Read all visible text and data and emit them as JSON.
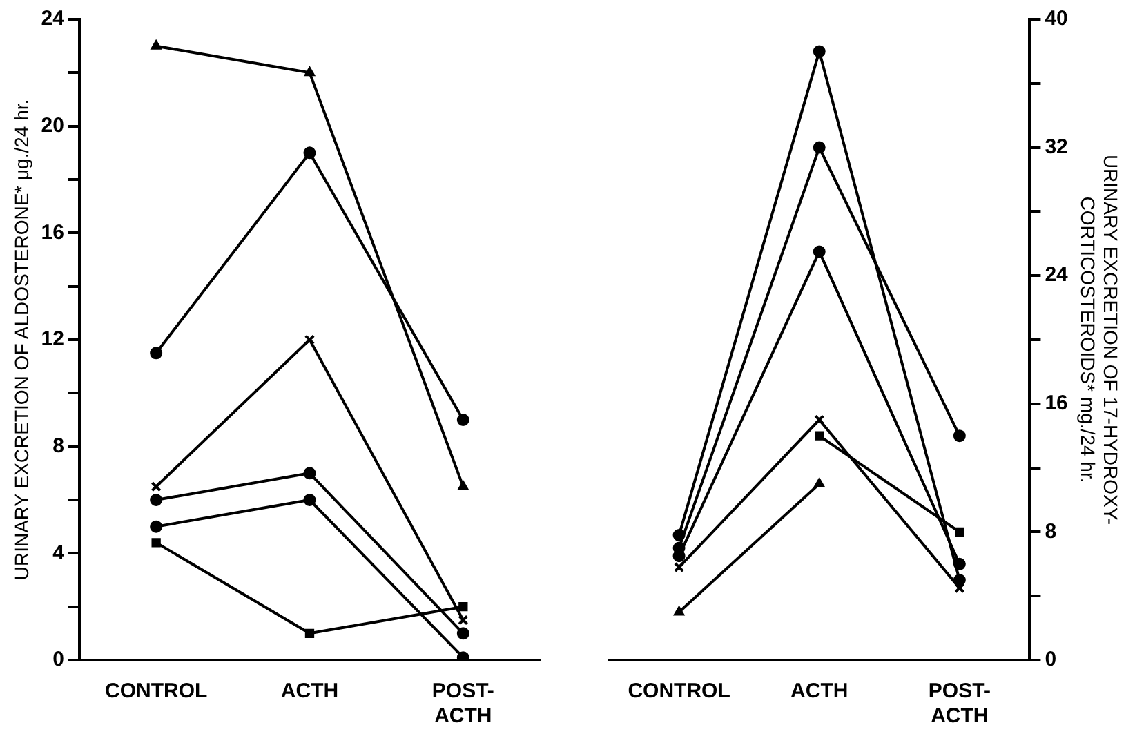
{
  "chart_data": [
    {
      "type": "line",
      "categories": [
        "CONTROL",
        "ACTH",
        "POST-ACTH"
      ],
      "ylabel": "URINARY EXCRETION OF ALDOSTERONE* μg./24 hr.",
      "ylim": [
        0,
        24
      ],
      "yticks": [
        0,
        {
          "value": 2,
          "label": null
        },
        4,
        {
          "value": 6,
          "label": null
        },
        8,
        {
          "value": 10,
          "label": null
        },
        12,
        {
          "value": 14,
          "label": null
        },
        16,
        {
          "value": 18,
          "label": null
        },
        20,
        {
          "value": 22,
          "label": null
        },
        24
      ],
      "grid": false,
      "legend": false,
      "line_style": "solid",
      "series": [
        {
          "color": "#000000",
          "marker": "triangle",
          "values": [
            23,
            22,
            6.5
          ]
        },
        {
          "color": "#000000",
          "marker": "circle",
          "values": [
            11.5,
            19,
            9
          ]
        },
        {
          "color": "#000000",
          "marker": "cross",
          "values": [
            6.5,
            12,
            1.5
          ]
        },
        {
          "color": "#000000",
          "marker": "circle",
          "values": [
            6,
            7,
            1
          ]
        },
        {
          "color": "#000000",
          "marker": "circle",
          "values": [
            5,
            6,
            0.1
          ]
        },
        {
          "color": "#000000",
          "marker": "square",
          "values": [
            4.4,
            1,
            2
          ]
        }
      ]
    },
    {
      "type": "line",
      "categories": [
        "CONTROL",
        "ACTH",
        "POST-ACTH"
      ],
      "y2label": "URINARY EXCRETION OF 17-HYDROXY-CORTICOSTEROIDS* mg./24 hr.",
      "y2lim": [
        0,
        40
      ],
      "y2ticks": [
        0,
        {
          "value": 4,
          "label": null
        },
        8,
        {
          "value": 12,
          "label": null
        },
        16,
        {
          "value": 20,
          "label": null
        },
        24,
        {
          "value": 28,
          "label": null
        },
        32,
        {
          "value": 36,
          "label": null
        },
        40
      ],
      "grid": false,
      "legend": false,
      "line_style": "solid",
      "series": [
        {
          "color": "#000000",
          "marker": "triangle",
          "axis": "y2",
          "values": [
            3,
            11,
            null
          ]
        },
        {
          "color": "#000000",
          "marker": "circle",
          "axis": "y2",
          "values": [
            7.8,
            38,
            5
          ]
        },
        {
          "color": "#000000",
          "marker": "cross",
          "axis": "y2",
          "values": [
            5.8,
            15,
            4.5
          ]
        },
        {
          "color": "#000000",
          "marker": "circle",
          "axis": "y2",
          "values": [
            7,
            32,
            14
          ]
        },
        {
          "color": "#000000",
          "marker": "circle",
          "axis": "y2",
          "values": [
            6.5,
            25.5,
            6
          ]
        },
        {
          "color": "#000000",
          "marker": "square",
          "axis": "y2",
          "values": [
            null,
            14,
            8
          ]
        }
      ]
    }
  ]
}
